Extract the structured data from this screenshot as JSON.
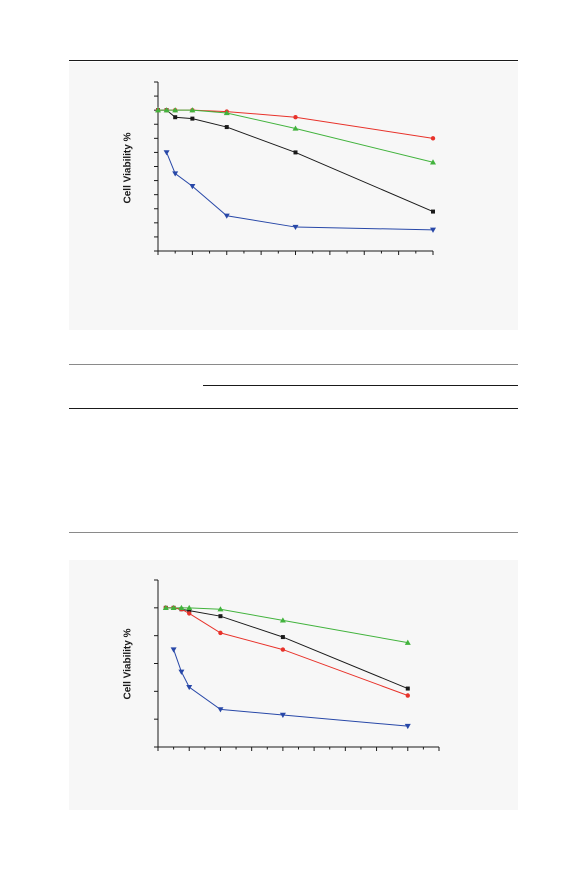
{
  "chart_data": [
    {
      "type": "line",
      "ylabel": "Cell Viability %",
      "series": [
        {
          "color": "#1a1a1a",
          "marker": "square",
          "points": [
            [
              0,
              100
            ],
            [
              1,
              100
            ],
            [
              2,
              95
            ],
            [
              4,
              94
            ],
            [
              8,
              88
            ],
            [
              16,
              70
            ],
            [
              32,
              28
            ]
          ]
        },
        {
          "color": "#e8322a",
          "marker": "circle",
          "points": [
            [
              0,
              100
            ],
            [
              1,
              100
            ],
            [
              2,
              100
            ],
            [
              4,
              100
            ],
            [
              8,
              99
            ],
            [
              16,
              95
            ],
            [
              32,
              80
            ]
          ]
        },
        {
          "color": "#42b33d",
          "marker": "triangle-up",
          "points": [
            [
              0,
              100
            ],
            [
              1,
              100
            ],
            [
              2,
              100
            ],
            [
              4,
              100
            ],
            [
              8,
              98
            ],
            [
              16,
              87
            ],
            [
              32,
              63
            ]
          ]
        },
        {
          "color": "#2848a8",
          "marker": "triangle-down",
          "points": [
            [
              1,
              70
            ],
            [
              2,
              55
            ],
            [
              4,
              46
            ],
            [
              8,
              25
            ],
            [
              16,
              17
            ],
            [
              32,
              15
            ]
          ]
        }
      ]
    },
    {
      "type": "line",
      "ylabel": "Cell Viability %",
      "series": [
        {
          "color": "#1a1a1a",
          "marker": "square",
          "points": [
            [
              1,
              100
            ],
            [
              2,
              100
            ],
            [
              3,
              99
            ],
            [
              4,
              98
            ],
            [
              8,
              94
            ],
            [
              16,
              79
            ],
            [
              32,
              42
            ]
          ]
        },
        {
          "color": "#e8322a",
          "marker": "circle",
          "points": [
            [
              1,
              100
            ],
            [
              2,
              100
            ],
            [
              3,
              99
            ],
            [
              4,
              96
            ],
            [
              8,
              82
            ],
            [
              16,
              70
            ],
            [
              32,
              37
            ]
          ]
        },
        {
          "color": "#42b33d",
          "marker": "triangle-up",
          "points": [
            [
              1,
              100
            ],
            [
              2,
              100
            ],
            [
              3,
              100
            ],
            [
              4,
              100
            ],
            [
              8,
              99
            ],
            [
              16,
              91
            ],
            [
              32,
              75
            ]
          ]
        },
        {
          "color": "#2848a8",
          "marker": "triangle-down",
          "points": [
            [
              2,
              70
            ],
            [
              3,
              54
            ],
            [
              4,
              43
            ],
            [
              8,
              27
            ],
            [
              16,
              23
            ],
            [
              32,
              15
            ]
          ]
        }
      ]
    }
  ]
}
